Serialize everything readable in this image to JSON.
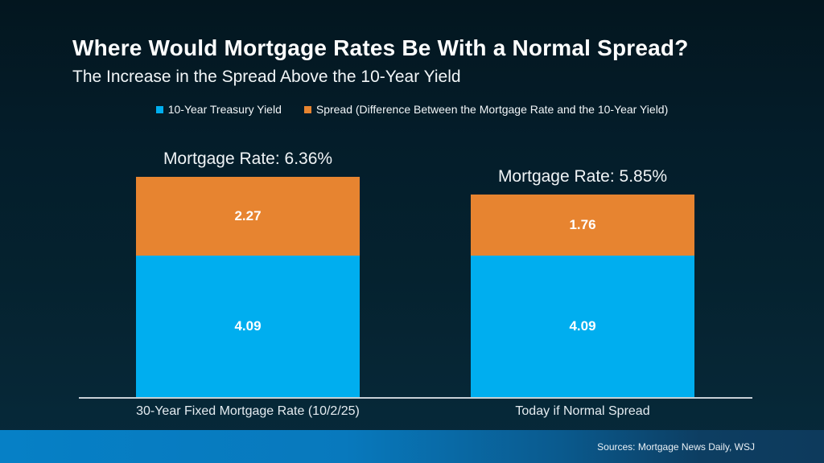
{
  "header": {
    "title": "Where Would Mortgage Rates Be With a Normal Spread?",
    "subtitle": "The Increase in the Spread Above the 10-Year Yield"
  },
  "legend": {
    "items": [
      {
        "label": "10-Year Treasury Yield",
        "color": "#00AEEF"
      },
      {
        "label": "Spread (Difference Between the Mortgage Rate and the 10-Year Yield)",
        "color": "#E78430"
      }
    ]
  },
  "chart_data": {
    "type": "bar",
    "stacked": true,
    "title": "Where Would Mortgage Rates Be With a Normal Spread?",
    "subtitle": "The Increase in the Spread Above the 10-Year Yield",
    "categories": [
      "30-Year Fixed Mortgage Rate (10/2/25)",
      "Today if Normal Spread"
    ],
    "series": [
      {
        "name": "10-Year Treasury Yield",
        "color": "#00AEEF",
        "values": [
          4.09,
          4.09
        ]
      },
      {
        "name": "Spread (Difference Between the Mortgage Rate and the 10-Year Yield)",
        "color": "#E78430",
        "values": [
          2.27,
          1.76
        ]
      }
    ],
    "bar_totals": [
      "Mortgage Rate: 6.36%",
      "Mortgage Rate: 5.85%"
    ],
    "totals_values": [
      6.36,
      5.85
    ],
    "ylim": [
      0,
      6.5
    ],
    "grid": false,
    "legend_position": "top",
    "value_label_color": "#FFFFFF"
  },
  "footer": {
    "sources": "Sources: Mortgage News Daily, WSJ"
  },
  "colors": {
    "background": "#041D2A",
    "treasury_blue": "#00AEEF",
    "spread_orange": "#E78430",
    "axis_line": "#C7D0D6",
    "footer_left": "#0680C6",
    "footer_right": "#0D3A5C"
  }
}
